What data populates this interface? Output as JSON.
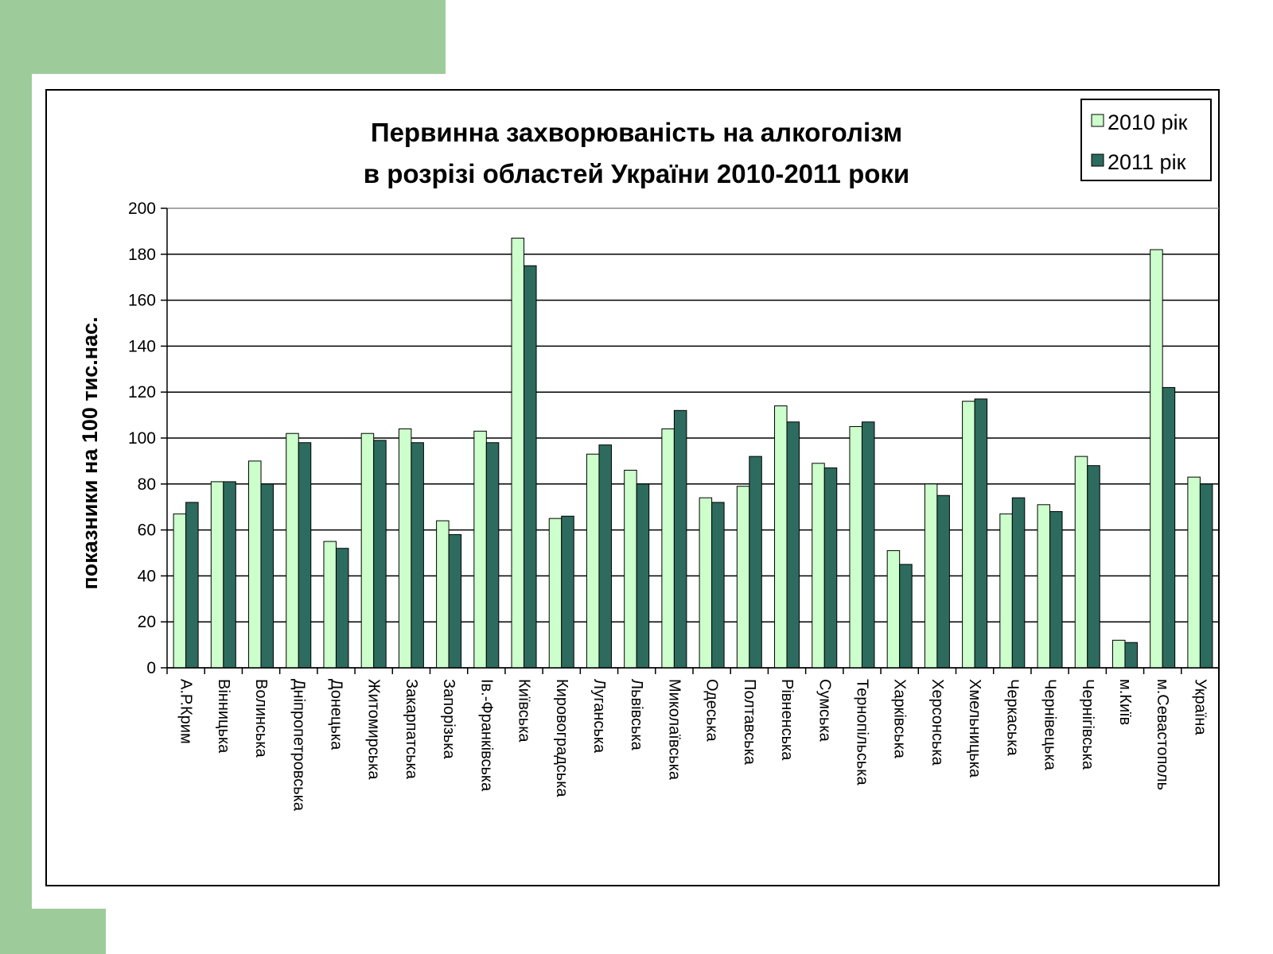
{
  "colors": {
    "accent_green": "#9dcc9a",
    "series_2010": "#ccffcc",
    "series_2011": "#2d6b5e",
    "grid": "#000000"
  },
  "chart_data": {
    "type": "bar",
    "title_line1": "Первинна захворюваність на алкоголізм",
    "title_line2": "в розрізі областей України 2010-2011 роки",
    "xlabel": "",
    "ylabel": "показники на 100 тис.нас.",
    "ylim": [
      0,
      200
    ],
    "yticks": [
      "0",
      "20",
      "40",
      "60",
      "80",
      "100",
      "120",
      "140",
      "160",
      "180",
      "200"
    ],
    "grid": true,
    "legend_position": "top-right",
    "categories": [
      "А.Р.Крим",
      "Вінницька",
      "Волинська",
      "Дніпропетровська",
      "Донецька",
      "Житомирська",
      "Закарпатська",
      "Запорізька",
      "Ів.-Франківська",
      "Київська",
      "Кировоградська",
      "Луганська",
      "Львівська",
      "Миколаївська",
      "Одеська",
      "Полтавська",
      "Рівненська",
      "Сумська",
      "Тернопільська",
      "Харківська",
      "Херсонська",
      "Хмельницька",
      "Черкаська",
      "Чернівецька",
      "Чернігівська",
      "м.Київ",
      "м.Севастополь",
      "Україна"
    ],
    "series": [
      {
        "name": "2010 рік",
        "values": [
          67,
          81,
          90,
          102,
          55,
          102,
          104,
          64,
          103,
          187,
          65,
          93,
          86,
          104,
          74,
          79,
          114,
          89,
          105,
          51,
          80,
          116,
          67,
          71,
          92,
          12,
          182,
          83
        ]
      },
      {
        "name": "2011 рік",
        "values": [
          72,
          81,
          80,
          98,
          52,
          99,
          98,
          58,
          98,
          175,
          66,
          97,
          80,
          112,
          72,
          92,
          107,
          87,
          107,
          45,
          75,
          117,
          74,
          68,
          88,
          11,
          122,
          80
        ]
      }
    ]
  }
}
